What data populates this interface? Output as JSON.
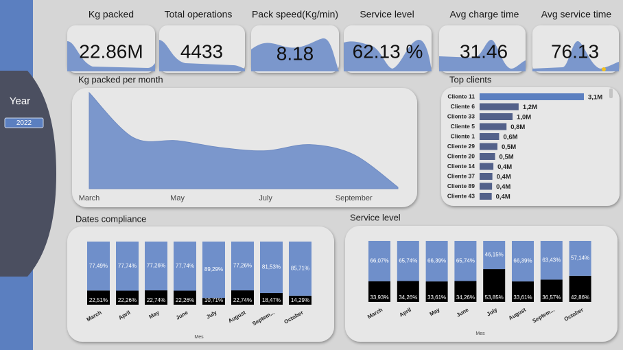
{
  "sidebar": {
    "title": "Year",
    "slicer": "2022"
  },
  "kpis": [
    {
      "label": "Kg packed",
      "value": "22.86M"
    },
    {
      "label": "Total operations",
      "value": 4433
    },
    {
      "label": "Pack speed(Kg/min)",
      "value": 8.18
    },
    {
      "label": "Service level",
      "value": "62.13 %"
    },
    {
      "label": "Avg charge time",
      "value": 31.46
    },
    {
      "label": "Avg service time",
      "value": 76.13
    }
  ],
  "chart_data": [
    {
      "type": "area",
      "title": "Kg packed per month",
      "categories": [
        "March",
        null,
        "May",
        null,
        "July",
        null,
        "September",
        null
      ],
      "values": [
        6200000,
        3300000,
        3100000,
        2650000,
        2450000,
        2850000,
        2200000,
        100000
      ],
      "color": "#7b97cc"
    },
    {
      "type": "hbar",
      "title": "Top clients",
      "categories": [
        "Cliente 11",
        "Cliente 6",
        "Cliente 33",
        "Cliente 5",
        "Cliente 1",
        "Cliente 29",
        "Cliente 20",
        "Cliente 14",
        "Cliente 37",
        "Cliente 89",
        "Cliente 43"
      ],
      "values": [
        3100000,
        1160000,
        980000,
        800000,
        580000,
        530000,
        460000,
        410000,
        380000,
        370000,
        360000
      ],
      "value_labels": [
        "3,1M",
        "1,2M",
        "1,0M",
        "0,8M",
        "0,6M",
        "0,5M",
        "0,5M",
        "0,4M",
        "0,4M",
        "0,4M",
        "0,4M"
      ],
      "color": "#53618a"
    },
    {
      "type": "stacked_bar",
      "title": "Dates compliance",
      "x_label": "Mes",
      "categories": [
        "March",
        "April",
        "May",
        "June",
        "July",
        "August",
        "Septem...",
        "October"
      ],
      "series": [
        {
          "color": "#000000",
          "values": [
            22.51,
            22.26,
            22.74,
            22.26,
            10.71,
            22.74,
            18.47,
            14.29
          ],
          "value_labels": [
            "22,51%",
            "22,26%",
            "22,74%",
            "22,26%",
            "10,71%",
            "22,74%",
            "18,47%",
            "14,29%"
          ]
        },
        {
          "color": "#6f8fca",
          "values": [
            77.49,
            77.74,
            77.26,
            77.74,
            89.29,
            77.26,
            81.53,
            85.71
          ],
          "value_labels": [
            "77,49%",
            "77,74%",
            "77,26%",
            "77,74%",
            "89,29%",
            "77,26%",
            "81,53%",
            "85,71%"
          ]
        }
      ]
    },
    {
      "type": "stacked_bar",
      "title": "Service level",
      "x_label": "Mes",
      "categories": [
        "March",
        "April",
        "May",
        "June",
        "July",
        "August",
        "Septem...",
        "October"
      ],
      "series": [
        {
          "color": "#000000",
          "values": [
            33.93,
            34.26,
            33.61,
            34.26,
            53.85,
            33.61,
            36.57,
            42.86
          ],
          "value_labels": [
            "33,93%",
            "34,26%",
            "33,61%",
            "34,26%",
            "53,85%",
            "33,61%",
            "36,57%",
            "42,86%"
          ]
        },
        {
          "color": "#6f8fca",
          "values": [
            66.07,
            65.74,
            66.39,
            65.74,
            46.15,
            66.39,
            63.43,
            57.14
          ],
          "value_labels": [
            "66,07%",
            "65,74%",
            "66,39%",
            "65,74%",
            "46,15%",
            "66,39%",
            "63,43%",
            "57,14%"
          ]
        }
      ]
    }
  ]
}
